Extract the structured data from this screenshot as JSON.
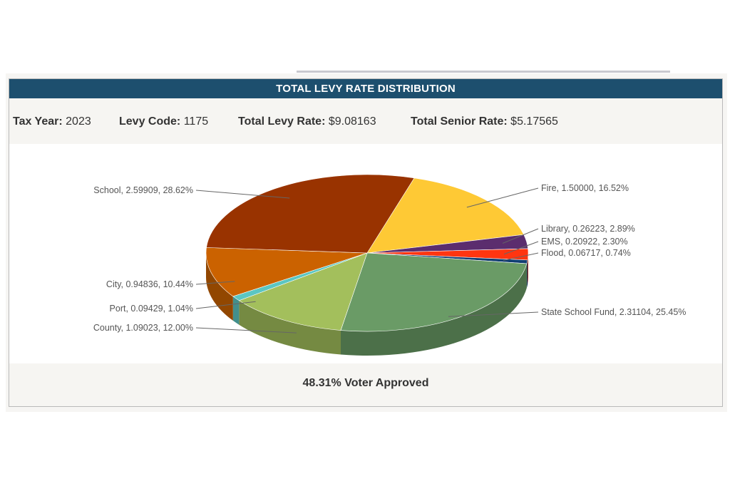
{
  "header": {
    "title": "TOTAL LEVY RATE DISTRIBUTION"
  },
  "info": {
    "tax_year_label": "Tax Year:",
    "tax_year_value": "2023",
    "levy_code_label": "Levy Code:",
    "levy_code_value": "1175",
    "total_levy_label": "Total Levy Rate:",
    "total_levy_value": "$9.08163",
    "senior_rate_label": "Total Senior Rate:",
    "senior_rate_value": "$5.17565"
  },
  "footer": {
    "voter_approved": "48.31% Voter Approved"
  },
  "chart_data": {
    "type": "pie",
    "title": "TOTAL LEVY RATE DISTRIBUTION",
    "slices": [
      {
        "name": "Fire",
        "value": 1.5,
        "percent": 16.52,
        "color": "#fec935",
        "label": "Fire, 1.50000, 16.52%"
      },
      {
        "name": "Library",
        "value": 0.26223,
        "percent": 2.89,
        "color": "#5b2d6e",
        "label": "Library, 0.26223, 2.89%"
      },
      {
        "name": "EMS",
        "value": 0.20922,
        "percent": 2.3,
        "color": "#ff3510",
        "label": "EMS, 0.20922, 2.30%"
      },
      {
        "name": "Flood",
        "value": 0.06717,
        "percent": 0.74,
        "color": "#123e72",
        "label": "Flood, 0.06717, 0.74%"
      },
      {
        "name": "State School Fund",
        "value": 2.31104,
        "percent": 25.45,
        "color": "#6a9b66",
        "label": "State School Fund, 2.31104, 25.45%"
      },
      {
        "name": "County",
        "value": 1.09023,
        "percent": 12.0,
        "color": "#a3bf5c",
        "label": "County, 1.09023, 12.00%"
      },
      {
        "name": "Port",
        "value": 0.09429,
        "percent": 1.04,
        "color": "#5bc6c2",
        "label": "Port, 0.09429, 1.04%"
      },
      {
        "name": "City",
        "value": 0.94836,
        "percent": 10.44,
        "color": "#cb6200",
        "label": "City, 0.94836, 10.44%"
      },
      {
        "name": "School",
        "value": 2.59909,
        "percent": 28.62,
        "color": "#993300",
        "label": "School, 2.59909, 28.62%"
      }
    ]
  }
}
